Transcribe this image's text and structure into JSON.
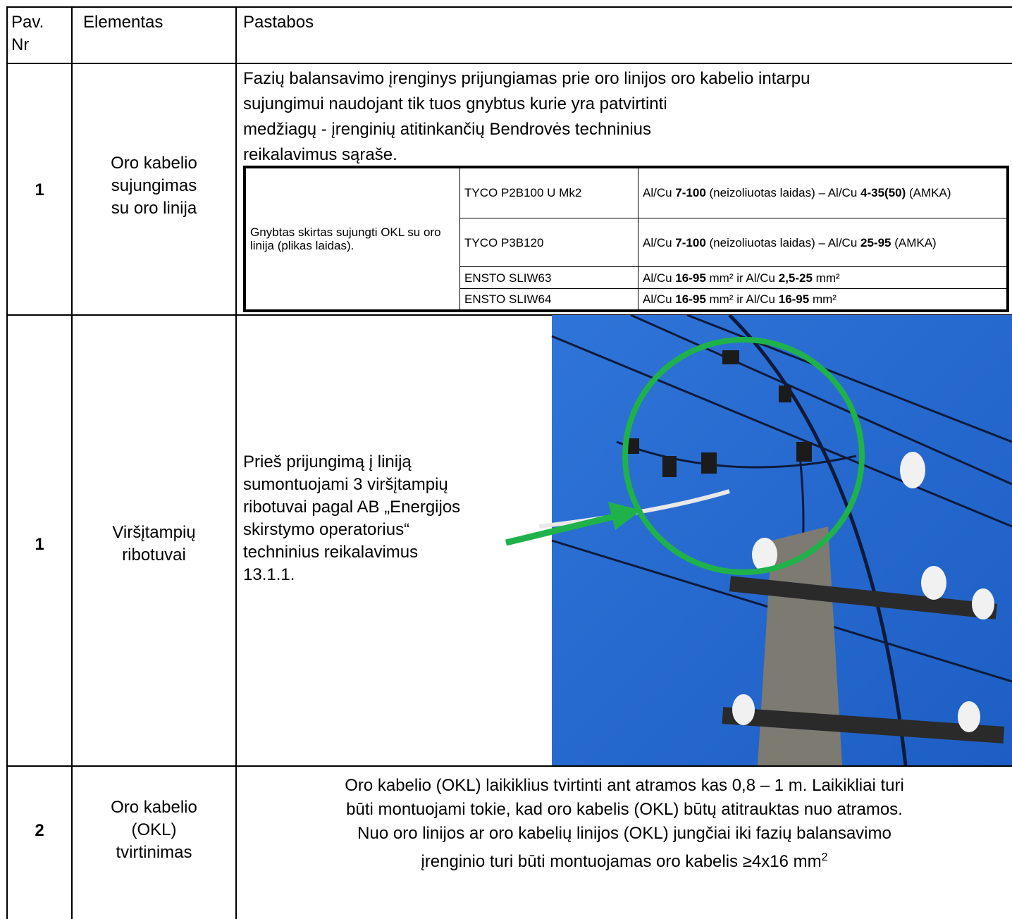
{
  "table": {
    "header": {
      "number": [
        "Pav.",
        "Nr"
      ],
      "element": [
        "Elementas"
      ],
      "notes": [
        "Pastabos"
      ]
    },
    "rows": [
      {
        "number": "1",
        "element": [
          "Oro kabelio",
          "sujungimas",
          "su oro linija"
        ],
        "notes": [
          "Fazių balansavimo įrenginys prijungiamas prie oro linijos oro kabelio intarpu",
          "sujungimui naudojant tik tuos gnybtus kurie yra patvirtinti",
          "medžiagų - įrenginių atitinkančių Bendrovės techninius",
          "reikalavimus sąraše."
        ],
        "clamps": {
          "purpose": "Gnybtas skirtas sujungti OKL su oro linija (plikas laidas).",
          "items": [
            {
              "model": "TYCO P2B100 U Mk2",
              "spec": [
                "Al/Cu ",
                "7-100",
                " (neizoliuotas laidas) – Al/Cu ",
                "4-35(50)",
                " (AMKA)"
              ]
            },
            {
              "model": "TYCO P3B120",
              "spec": [
                "Al/Cu ",
                "7-100",
                " (neizoliuotas laidas) – Al/Cu ",
                "25-95",
                " (AMKA)"
              ]
            },
            {
              "model": "ENSTO SLIW63",
              "spec": [
                "Al/Cu ",
                "16-95",
                " mm² ir Al/Cu ",
                "2,5-25",
                " mm²"
              ]
            },
            {
              "model": "ENSTO SLIW64",
              "spec": [
                "Al/Cu ",
                "16-95",
                " mm² ir Al/Cu ",
                "16-95",
                " mm²"
              ]
            }
          ]
        }
      },
      {
        "number": "1",
        "element": [
          "Viršįtampių",
          "ribotuvai"
        ],
        "notes": [
          "Prieš prijungimą į liniją",
          "sumontuojami 3 viršįtampių",
          "ribotuvai pagal AB „Energijos",
          "skirstymo operatorius“",
          "techninius reikalavimus",
          "13.1.1."
        ]
      },
      {
        "number": "2",
        "element": [
          "Oro kabelio",
          "(OKL)",
          "tvirtinimas"
        ],
        "notes": [
          "Oro kabelio (OKL) laikiklius tvirtinti ant atramos kas 0,8 – 1 m. Laikikliai turi",
          "būti montuojami tokie, kad oro kabelis (OKL) būtų atitrauktas nuo atramos.",
          "Nuo oro linijos ar oro kabelių linijos (OKL) jungčiai iki fazių balansavimo",
          "įrenginio turi būti montuojamas oro kabelis ≥4x16 mm"
        ],
        "notes_superscript": "2"
      }
    ]
  }
}
